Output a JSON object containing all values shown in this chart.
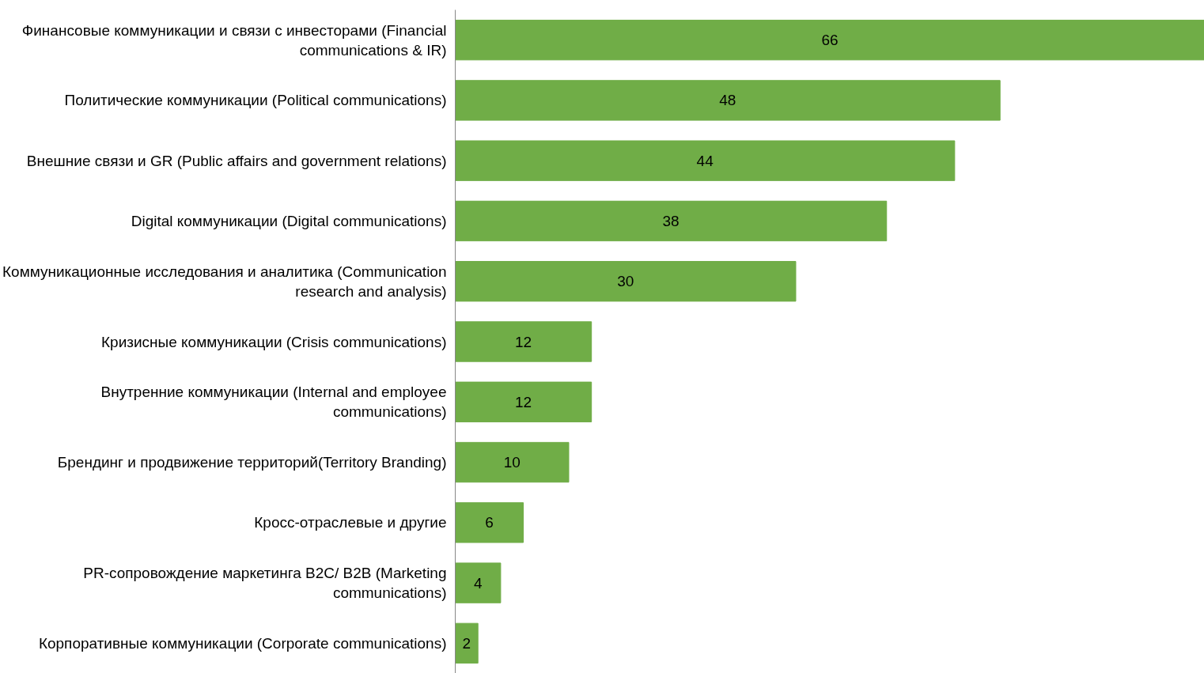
{
  "chart_data": {
    "type": "bar",
    "orientation": "horizontal",
    "data_labels": true,
    "grid": false,
    "tick_labels": "y",
    "categories": [
      "Финансовые коммуникации и связи с инвесторами (Financial communications & IR)",
      "Политические коммуникации (Political communications)",
      "Внешние связи и GR (Public affairs and government relations)",
      "Digital коммуникации (Digital communications)",
      "Коммуникационные исследования и аналитика (Communication research and analysis)",
      "Кризисные коммуникации (Crisis communications)",
      "Внутренние коммуникации (Internal and employee communications)",
      "Брендинг и продвижение территорий(Territory Branding)",
      "Кросс-отраслевые и другие",
      "PR-сопровождение маркетинга B2C/ B2B (Marketing communications)",
      "Корпоративные коммуникации (Corporate communications)"
    ],
    "values": [
      66,
      48,
      44,
      38,
      30,
      12,
      12,
      10,
      6,
      4,
      2
    ],
    "color": "#70ad47"
  }
}
